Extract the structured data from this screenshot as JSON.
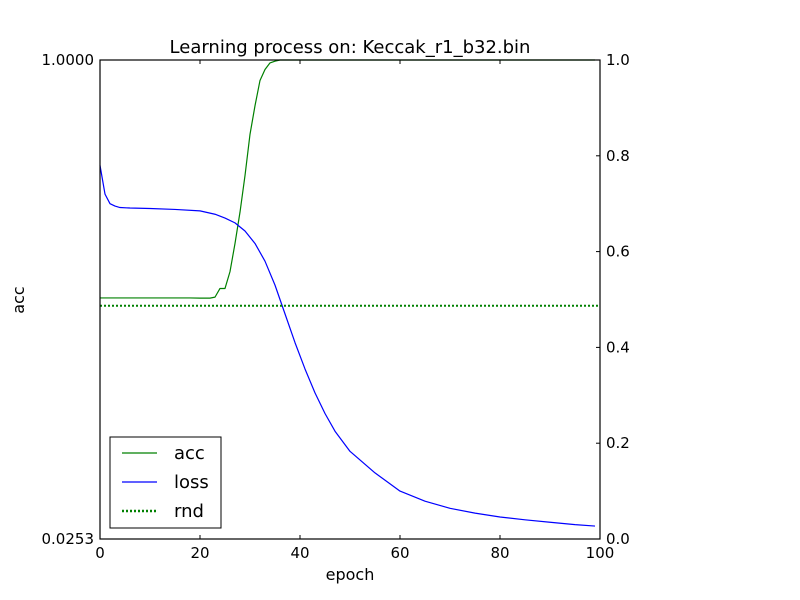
{
  "chart_data": {
    "type": "line",
    "title": "Learning process on: Keccak_r1_b32.bin",
    "xlabel": "epoch",
    "ylabel_left": "acc",
    "ylabel_right": "",
    "xlim": [
      0,
      100
    ],
    "ylim_left": [
      0.0253,
      1.0
    ],
    "ylim_right": [
      0.0,
      1.0
    ],
    "x_ticks": [
      0,
      20,
      40,
      60,
      80,
      100
    ],
    "y_left_ticks": [
      "1.0000",
      "0.0253"
    ],
    "y_right_ticks": [
      0.0,
      0.2,
      0.4,
      0.6,
      0.8,
      1.0
    ],
    "legend_position": "lower-left",
    "grid": false,
    "baseline_left": 0.0253,
    "series": [
      {
        "name": "acc",
        "axis": "left",
        "color": "#008000",
        "style": "solid",
        "x": [
          0,
          2,
          5,
          10,
          15,
          18,
          20,
          22,
          23,
          24,
          25,
          26,
          27,
          28,
          29,
          30,
          31,
          32,
          33,
          34,
          35,
          36,
          38,
          40,
          50,
          60,
          70,
          80,
          90,
          99
        ],
        "y": [
          0.5158,
          0.5158,
          0.5158,
          0.5158,
          0.5158,
          0.5158,
          0.5155,
          0.5155,
          0.5175,
          0.5351,
          0.5351,
          0.5694,
          0.6266,
          0.6904,
          0.7649,
          0.8487,
          0.9069,
          0.9584,
          0.9807,
          0.9941,
          0.9977,
          1.0,
          1.0,
          1.0,
          1.0,
          1.0,
          1.0,
          1.0,
          1.0,
          1.0
        ]
      },
      {
        "name": "loss",
        "axis": "right",
        "color": "#0000ff",
        "style": "solid",
        "x": [
          0,
          1,
          2,
          3,
          4,
          6,
          10,
          15,
          20,
          23,
          25,
          27,
          29,
          31,
          33,
          35,
          37,
          39,
          41,
          43,
          45,
          47,
          50,
          55,
          60,
          65,
          70,
          75,
          80,
          85,
          90,
          95,
          99
        ],
        "y": [
          0.78,
          0.72,
          0.7,
          0.695,
          0.692,
          0.691,
          0.69,
          0.688,
          0.685,
          0.678,
          0.67,
          0.66,
          0.643,
          0.617,
          0.58,
          0.53,
          0.47,
          0.41,
          0.355,
          0.305,
          0.262,
          0.225,
          0.183,
          0.138,
          0.1,
          0.079,
          0.064,
          0.054,
          0.046,
          0.04,
          0.035,
          0.03,
          0.027
        ]
      },
      {
        "name": "rnd",
        "axis": "left",
        "color": "#008000",
        "style": "dotted",
        "x": [
          0,
          100
        ],
        "y": [
          0.5,
          0.5
        ]
      }
    ]
  }
}
